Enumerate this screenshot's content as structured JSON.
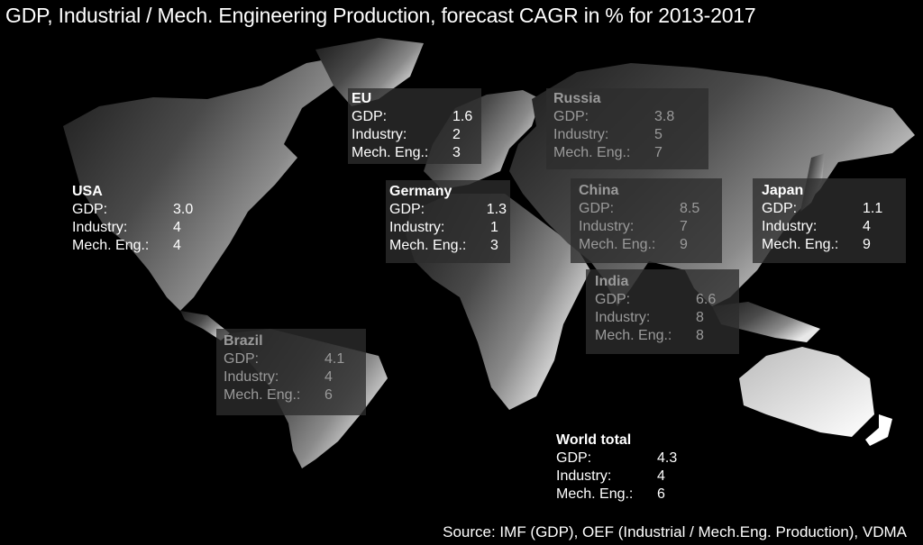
{
  "title": "GDP, Industrial / Mech. Engineering Production, forecast CAGR in % for  2013-2017",
  "source": "Source: IMF (GDP), OEF (Industrial / Mech.Eng. Production), VDMA",
  "labels": {
    "gdp": "GDP:",
    "industry": "Industry:",
    "mech": "Mech. Eng.:"
  },
  "regions": {
    "usa": {
      "name": "USA",
      "gdp": "3.0",
      "industry": "4",
      "mech": "4"
    },
    "eu": {
      "name": "EU",
      "gdp": "1.6",
      "industry": "2",
      "mech": "3"
    },
    "russia": {
      "name": "Russia",
      "gdp": "3.8",
      "industry": "5",
      "mech": "7"
    },
    "germany": {
      "name": "Germany",
      "gdp": "1.3",
      "industry": "1",
      "mech": "3"
    },
    "china": {
      "name": "China",
      "gdp": "8.5",
      "industry": "7",
      "mech": "9"
    },
    "japan": {
      "name": "Japan",
      "gdp": "1.1",
      "industry": "4",
      "mech": "9"
    },
    "india": {
      "name": "India",
      "gdp": "6.6",
      "industry": "8",
      "mech": "8"
    },
    "brazil": {
      "name": "Brazil",
      "gdp": "4.1",
      "industry": "4",
      "mech": "6"
    },
    "world": {
      "name": "World total",
      "gdp": "4.3",
      "industry": "4",
      "mech": "6"
    }
  }
}
